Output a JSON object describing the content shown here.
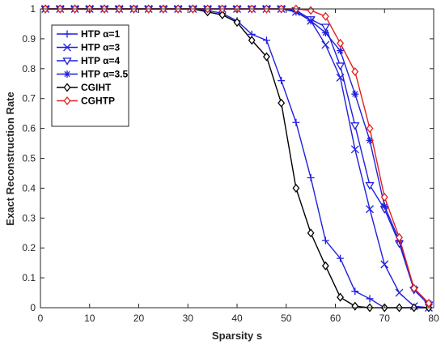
{
  "chart_data": {
    "type": "line",
    "title": "",
    "xlabel": "Sparsity s",
    "ylabel": "Exact Reconstruction Rate",
    "xlim": [
      0,
      80
    ],
    "ylim": [
      0,
      1
    ],
    "xticks": [
      0,
      10,
      20,
      30,
      40,
      50,
      60,
      70,
      80
    ],
    "yticks": [
      0,
      0.1,
      0.2,
      0.3,
      0.4,
      0.5,
      0.6,
      0.7,
      0.8,
      0.9,
      1
    ],
    "grid": false,
    "legend_position": "top-left (inside)",
    "series": [
      {
        "name": "HTP α=1",
        "color": "#1f1fe0",
        "marker": "plus",
        "x": [
          1,
          4,
          7,
          10,
          13,
          16,
          19,
          22,
          25,
          28,
          31,
          34,
          37,
          40,
          43,
          46,
          49,
          52,
          55,
          58,
          61,
          64,
          67,
          70,
          73,
          76,
          79
        ],
        "y": [
          1,
          1,
          1,
          1,
          1,
          1,
          1,
          1,
          1,
          1,
          1,
          0.995,
          0.985,
          0.96,
          0.915,
          0.895,
          0.76,
          0.62,
          0.435,
          0.225,
          0.165,
          0.055,
          0.03,
          0.0,
          0.0,
          0.0,
          0.0
        ]
      },
      {
        "name": "HTP α=3",
        "color": "#1f1fe0",
        "marker": "x",
        "x": [
          1,
          4,
          7,
          10,
          13,
          16,
          19,
          22,
          25,
          28,
          31,
          34,
          37,
          40,
          43,
          46,
          49,
          52,
          55,
          58,
          61,
          64,
          67,
          70,
          73,
          76,
          79
        ],
        "y": [
          1,
          1,
          1,
          1,
          1,
          1,
          1,
          1,
          1,
          1,
          1,
          1,
          1,
          1,
          1,
          1,
          1,
          0.99,
          0.96,
          0.88,
          0.77,
          0.53,
          0.33,
          0.145,
          0.05,
          0.005,
          0.0
        ]
      },
      {
        "name": "HTP α=4",
        "color": "#1f1fe0",
        "marker": "triangle-down",
        "x": [
          1,
          4,
          7,
          10,
          13,
          16,
          19,
          22,
          25,
          28,
          31,
          34,
          37,
          40,
          43,
          46,
          49,
          52,
          55,
          58,
          61,
          64,
          67,
          70,
          73,
          76,
          79
        ],
        "y": [
          1,
          1,
          1,
          1,
          1,
          1,
          1,
          1,
          1,
          1,
          1,
          1,
          1,
          1,
          1,
          1,
          1,
          0.995,
          0.965,
          0.94,
          0.81,
          0.61,
          0.41,
          0.33,
          0.215,
          0.06,
          0.01
        ]
      },
      {
        "name": "HTP α=3.5",
        "color": "#1f1fe0",
        "marker": "star",
        "x": [
          1,
          4,
          7,
          10,
          13,
          16,
          19,
          22,
          25,
          28,
          31,
          34,
          37,
          40,
          43,
          46,
          49,
          52,
          55,
          58,
          61,
          64,
          67,
          70,
          73,
          76,
          79
        ],
        "y": [
          1,
          1,
          1,
          1,
          1,
          1,
          1,
          1,
          1,
          1,
          1,
          1,
          1,
          1,
          1,
          1,
          1,
          0.99,
          0.96,
          0.92,
          0.86,
          0.715,
          0.56,
          0.34,
          0.225,
          0.065,
          0.015
        ]
      },
      {
        "name": "CGIHT",
        "color": "#000000",
        "marker": "diamond",
        "x": [
          1,
          4,
          7,
          10,
          13,
          16,
          19,
          22,
          25,
          28,
          31,
          34,
          37,
          40,
          43,
          46,
          49,
          52,
          55,
          58,
          61,
          64,
          67,
          70,
          73,
          76,
          79
        ],
        "y": [
          1,
          1,
          1,
          1,
          1,
          1,
          1,
          1,
          1,
          1,
          1,
          0.99,
          0.98,
          0.955,
          0.895,
          0.84,
          0.685,
          0.4,
          0.25,
          0.14,
          0.035,
          0.005,
          0.0,
          0.0,
          0.0,
          0.0,
          0.0
        ]
      },
      {
        "name": "CGHTP",
        "color": "#e01f1f",
        "marker": "diamond",
        "x": [
          1,
          4,
          7,
          10,
          13,
          16,
          19,
          22,
          25,
          28,
          31,
          34,
          37,
          40,
          43,
          46,
          49,
          52,
          55,
          58,
          61,
          64,
          67,
          70,
          73,
          76,
          79
        ],
        "y": [
          1,
          1,
          1,
          1,
          1,
          1,
          1,
          1,
          1,
          1,
          1,
          1,
          1,
          1,
          1,
          1,
          1,
          1,
          0.995,
          0.975,
          0.885,
          0.79,
          0.6,
          0.37,
          0.235,
          0.065,
          0.015
        ]
      }
    ]
  }
}
